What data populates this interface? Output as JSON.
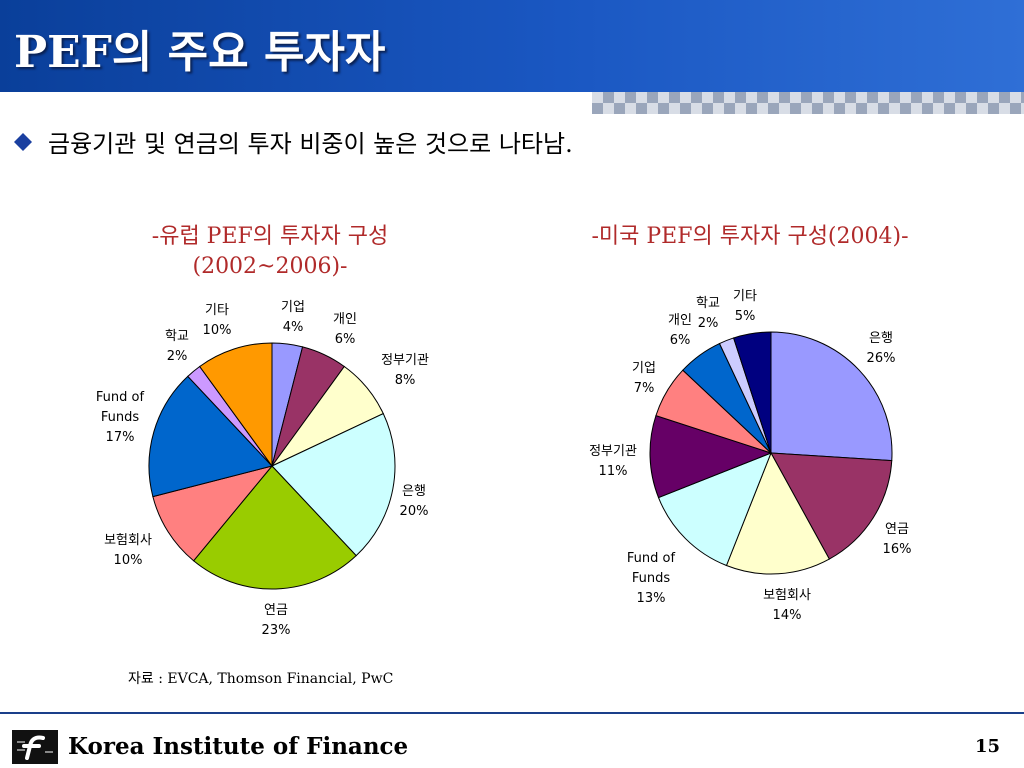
{
  "header": {
    "title": "PEF의 주요 투자자"
  },
  "bullet": {
    "icon": "diamond-icon",
    "text": "금융기관 및 연금의 투자 비중이 높은 것으로 나타남."
  },
  "charts": {
    "europe": {
      "title_line1": "-유럽 PEF의 투자자 구성",
      "title_line2": "(2002~2006)-"
    },
    "us": {
      "title": "-미국 PEF의 투자자 구성(2004)-"
    }
  },
  "chart_data": [
    {
      "type": "pie",
      "title": "-유럽 PEF의 투자자 구성 (2002~2006)-",
      "slices": [
        {
          "name": "기업",
          "value": 4,
          "label": "4%",
          "color": "#9999ff"
        },
        {
          "name": "개인",
          "value": 6,
          "label": "6%",
          "color": "#993366"
        },
        {
          "name": "정부기관",
          "value": 8,
          "label": "8%",
          "color": "#ffffcc"
        },
        {
          "name": "은행",
          "value": 20,
          "label": "20%",
          "color": "#ccffff"
        },
        {
          "name": "연금",
          "value": 23,
          "label": "23%",
          "color": "#99cc00"
        },
        {
          "name": "보험회사",
          "value": 10,
          "label": "10%",
          "color": "#ff8080"
        },
        {
          "name": "Fund of Funds",
          "value": 17,
          "label": "17%",
          "color": "#0066cc"
        },
        {
          "name": "학교",
          "value": 2,
          "label": "2%",
          "color": "#cc99ff"
        },
        {
          "name": "기타",
          "value": 10,
          "label": "10%",
          "color": "#ff9900"
        }
      ]
    },
    {
      "type": "pie",
      "title": "-미국 PEF의 투자자 구성(2004)-",
      "slices": [
        {
          "name": "은행",
          "value": 26,
          "label": "26%",
          "color": "#9999ff"
        },
        {
          "name": "연금",
          "value": 16,
          "label": "16%",
          "color": "#993366"
        },
        {
          "name": "보험회사",
          "value": 14,
          "label": "14%",
          "color": "#ffffcc"
        },
        {
          "name": "Fund of Funds",
          "value": 13,
          "label": "13%",
          "color": "#ccffff"
        },
        {
          "name": "정부기관",
          "value": 11,
          "label": "11%",
          "color": "#660066"
        },
        {
          "name": "기업",
          "value": 7,
          "label": "7%",
          "color": "#ff8080"
        },
        {
          "name": "개인",
          "value": 6,
          "label": "6%",
          "color": "#0066cc"
        },
        {
          "name": "학교",
          "value": 2,
          "label": "2%",
          "color": "#ccccff"
        },
        {
          "name": "기타",
          "value": 5,
          "label": "5%",
          "color": "#000080"
        }
      ]
    }
  ],
  "source": {
    "text": "자료 : EVCA, Thomson Financial, PwC"
  },
  "footer": {
    "org": "Korea Institute of Finance",
    "page": "15",
    "logo": "kif-logo"
  }
}
